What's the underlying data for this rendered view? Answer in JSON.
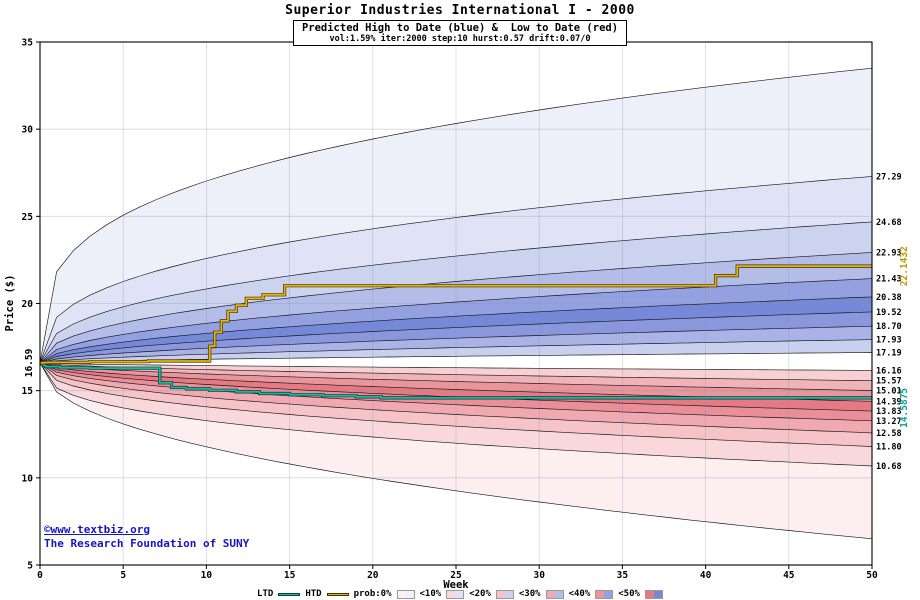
{
  "header": {
    "title": "Superior Industries International I - 2000",
    "subtitle": "Predicted High to Date (blue) &  Low to Date (red)",
    "params": "vol:1.59% iter:2000 step:10 hurst:0.57 drift:0.07/0"
  },
  "footer": {
    "copyright": "©www.textbiz.org",
    "org": "The Research Foundation of SUNY"
  },
  "legend": {
    "ltd_label": "LTD",
    "htd_label": "HTD",
    "prob_label": "prob:0%",
    "prob_swatch": {
      "red": "#fdf0f1",
      "blue": "#f0f2fb"
    },
    "levels": [
      {
        "label": "<10%",
        "red": "#f9d8db",
        "blue": "#dfe3f5"
      },
      {
        "label": "<20%",
        "red": "#f5c3c8",
        "blue": "#ccd3ef"
      },
      {
        "label": "<30%",
        "red": "#f0a9b0",
        "blue": "#b3bde8"
      },
      {
        "label": "<40%",
        "red": "#ea959c",
        "blue": "#94a1e0"
      },
      {
        "label": "<50%",
        "red": "#e57a84",
        "blue": "#7688d8"
      }
    ]
  },
  "chart_data": {
    "type": "area",
    "title": "Superior Industries International I - 2000",
    "subtitle": "Predicted High to Date (blue) &  Low to Date (red)",
    "params": "vol:1.59% iter:2000 step:10 hurst:0.57 drift:0.07/0",
    "xlabel": "Week",
    "ylabel": "Price ($)",
    "xlim": [
      0,
      50
    ],
    "ylim": [
      5,
      35
    ],
    "xticks": [
      0,
      5,
      10,
      15,
      20,
      25,
      30,
      35,
      40,
      45,
      50
    ],
    "yticks": [
      5,
      10,
      15,
      20,
      25,
      30,
      35
    ],
    "grid": true,
    "start_price": 16.59,
    "start_label": "16.59",
    "upper_bounds": {
      "ends": [
        33.5,
        27.29,
        24.68,
        22.93,
        21.43,
        20.38,
        19.52,
        18.7,
        17.93,
        17.19
      ],
      "exponents": [
        0.3,
        0.36,
        0.4,
        0.44,
        0.47,
        0.5,
        0.53,
        0.57,
        0.61,
        0.65
      ],
      "labels": [
        "",
        "27.29",
        "24.68",
        "22.93",
        "21.43",
        "20.38",
        "19.52",
        "18.70",
        "17.93",
        "17.19"
      ]
    },
    "lower_bounds": {
      "ends": [
        16.16,
        15.57,
        15.01,
        14.39,
        13.83,
        13.27,
        12.58,
        11.8,
        10.68,
        6.5
      ],
      "exponents": [
        0.65,
        0.61,
        0.57,
        0.53,
        0.5,
        0.47,
        0.44,
        0.4,
        0.36,
        0.46
      ],
      "labels": [
        "16.16",
        "15.57",
        "15.01",
        "14.39",
        "13.83",
        "13.27",
        "12.58",
        "11.80",
        "10.68",
        ""
      ]
    },
    "band_colors_upper": [
      "#edeff9",
      "#dfe3f5",
      "#ccd3ef",
      "#b3bde8",
      "#94a1e0",
      "#7688d8",
      "#8b97dd",
      "#aab3e6",
      "#c9cfef"
    ],
    "band_colors_lower": [
      "#f6d0d3",
      "#f0b3b8",
      "#ea959c",
      "#e57a84",
      "#ea8f98",
      "#f0a9b0",
      "#f5c3c8",
      "#f9d8db",
      "#fdeef0"
    ],
    "grid_color": "#8890a8",
    "boundary_color": "#15151a",
    "htd": {
      "name": "HTD",
      "color": "#e8b40e",
      "label_color": "#bd9a00",
      "edge": "#3d3200",
      "end_label": "22.1432",
      "points": [
        [
          0,
          16.59
        ],
        [
          0.6,
          16.62
        ],
        [
          3,
          16.62
        ],
        [
          3,
          16.66
        ],
        [
          6.5,
          16.66
        ],
        [
          6.5,
          16.7
        ],
        [
          10.2,
          16.7
        ],
        [
          10.2,
          17.55
        ],
        [
          10.5,
          17.55
        ],
        [
          10.5,
          18.35
        ],
        [
          10.9,
          18.35
        ],
        [
          10.9,
          19.0
        ],
        [
          11.3,
          19.0
        ],
        [
          11.3,
          19.55
        ],
        [
          11.8,
          19.55
        ],
        [
          11.8,
          19.9
        ],
        [
          12.4,
          19.9
        ],
        [
          12.4,
          20.3
        ],
        [
          13.4,
          20.3
        ],
        [
          13.4,
          20.5
        ],
        [
          14.7,
          20.5
        ],
        [
          14.7,
          21.02
        ],
        [
          40.6,
          21.02
        ],
        [
          40.6,
          21.6
        ],
        [
          41.9,
          21.6
        ],
        [
          41.9,
          22.1432
        ],
        [
          50,
          22.1432
        ]
      ]
    },
    "ltd": {
      "name": "LTD",
      "color": "#25b3a2",
      "label_color": "#0f9e8f",
      "edge": "#073f39",
      "end_label": "14.5875",
      "points": [
        [
          0,
          16.59
        ],
        [
          0.4,
          16.38
        ],
        [
          1.2,
          16.38
        ],
        [
          1.2,
          16.32
        ],
        [
          3,
          16.32
        ],
        [
          3,
          16.29
        ],
        [
          7.2,
          16.29
        ],
        [
          7.2,
          15.45
        ],
        [
          7.9,
          15.45
        ],
        [
          7.9,
          15.18
        ],
        [
          8.8,
          15.18
        ],
        [
          8.8,
          15.1
        ],
        [
          10.2,
          15.1
        ],
        [
          10.2,
          15.02
        ],
        [
          11.8,
          15.02
        ],
        [
          11.8,
          14.93
        ],
        [
          13.2,
          14.93
        ],
        [
          13.2,
          14.84
        ],
        [
          15,
          14.84
        ],
        [
          15,
          14.77
        ],
        [
          17,
          14.77
        ],
        [
          17,
          14.71
        ],
        [
          19,
          14.71
        ],
        [
          19,
          14.64
        ],
        [
          20.5,
          14.64
        ],
        [
          20.5,
          14.5875
        ],
        [
          50,
          14.5875
        ]
      ]
    }
  }
}
